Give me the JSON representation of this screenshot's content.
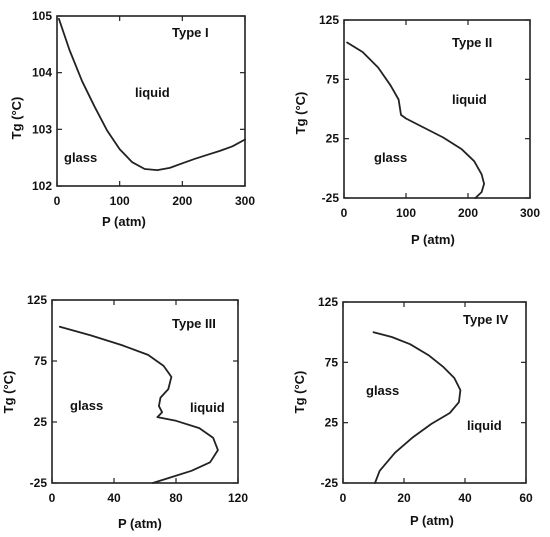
{
  "chart_data": [
    {
      "type": "line",
      "title": "Type I",
      "xlabel": "P   (atm)",
      "ylabel": "Tg  (°C)",
      "xlim": [
        0,
        300
      ],
      "ylim": [
        102,
        105
      ],
      "x_ticks": [
        "0",
        "100",
        "200",
        "300"
      ],
      "y_ticks": [
        "102",
        "103",
        "104",
        "105"
      ],
      "grid": false,
      "region_labels": [
        "liquid",
        "glass"
      ],
      "series": [
        {
          "x": [
            3,
            20,
            40,
            60,
            80,
            100,
            120,
            140,
            160,
            180,
            200,
            220,
            240,
            260,
            280,
            300
          ],
          "y": [
            104.95,
            104.4,
            103.85,
            103.4,
            102.98,
            102.65,
            102.42,
            102.3,
            102.28,
            102.32,
            102.4,
            102.48,
            102.55,
            102.62,
            102.7,
            102.82
          ]
        }
      ]
    },
    {
      "type": "line",
      "title": "Type II",
      "xlabel": "P   (atm)",
      "ylabel": "Tg  (°C)",
      "xlim": [
        0,
        300
      ],
      "ylim": [
        -25,
        125
      ],
      "x_ticks": [
        "0",
        "100",
        "200",
        "300"
      ],
      "y_ticks": [
        "-25",
        "25",
        "75",
        "125"
      ],
      "grid": false,
      "region_labels": [
        "liquid",
        "glass"
      ],
      "series": [
        {
          "x": [
            5,
            30,
            55,
            75,
            88,
            92,
            100,
            130,
            160,
            190,
            210,
            222,
            226,
            222,
            212
          ],
          "y": [
            106,
            98,
            85,
            70,
            58,
            45,
            42,
            34,
            26,
            16,
            6,
            -5,
            -13,
            -20,
            -25
          ]
        }
      ]
    },
    {
      "type": "line",
      "title": "Type III",
      "xlabel": "P   (atm)",
      "ylabel": "Tg  (°C)",
      "xlim": [
        0,
        120
      ],
      "ylim": [
        -25,
        125
      ],
      "x_ticks": [
        "0",
        "40",
        "80",
        "120"
      ],
      "y_ticks": [
        "-25",
        "25",
        "75",
        "125"
      ],
      "grid": false,
      "region_labels": [
        "glass",
        "liquid"
      ],
      "series": [
        {
          "x": [
            5,
            25,
            45,
            62,
            72,
            77,
            75,
            70,
            69,
            71,
            68,
            80,
            95,
            104,
            107,
            102,
            90,
            75,
            65
          ],
          "y": [
            103,
            96,
            88,
            80,
            71,
            62,
            52,
            45,
            38,
            33,
            29,
            26,
            20,
            12,
            2,
            -8,
            -15,
            -21,
            -25
          ]
        }
      ]
    },
    {
      "type": "line",
      "title": "Type IV",
      "xlabel": "P   (atm)",
      "ylabel": "Tg  (°C)",
      "xlim": [
        0,
        60
      ],
      "ylim": [
        -25,
        125
      ],
      "x_ticks": [
        "0",
        "20",
        "40",
        "60"
      ],
      "y_ticks": [
        "-25",
        "25",
        "75",
        "125"
      ],
      "grid": false,
      "region_labels": [
        "glass",
        "liquid"
      ],
      "series": [
        {
          "x": [
            10,
            16,
            22,
            28,
            33,
            36.5,
            38.5,
            38,
            35,
            29,
            23,
            17,
            12,
            10.5
          ],
          "y": [
            100,
            96,
            90,
            81,
            71,
            62,
            52,
            42,
            33,
            24,
            13,
            0,
            -15,
            -25
          ]
        }
      ]
    }
  ]
}
